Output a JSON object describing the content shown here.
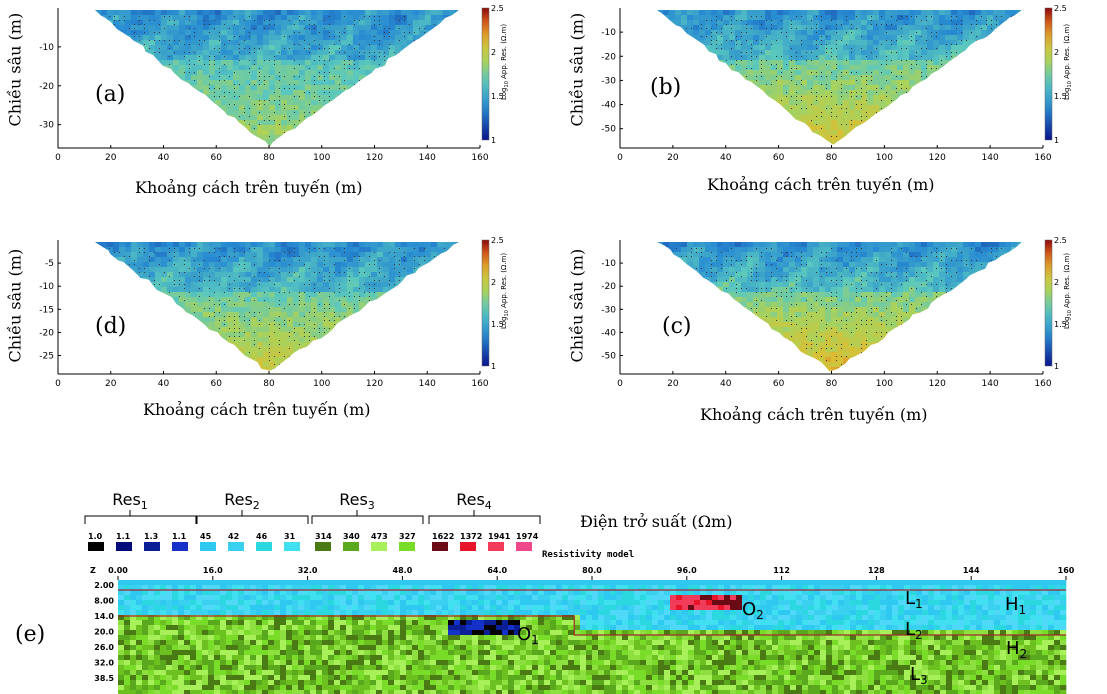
{
  "panels": [
    {
      "id": "a",
      "label": "(a)",
      "ylabel": "Chiều sâu (m)",
      "xlabel": "Khoảng cách trên tuyến (m)",
      "xticks": [
        "0",
        "20",
        "40",
        "60",
        "80",
        "100",
        "120",
        "140",
        "160"
      ],
      "yticks": [
        "-10",
        "-20",
        "-30"
      ],
      "ytick_values": [
        -10,
        -20,
        -30
      ],
      "ymin": -36,
      "colorbar_label": "Log10 App. Res. (Ω.m)",
      "colorbar_ticks": [
        "2.5",
        "2",
        "1.5",
        "1"
      ],
      "tone": 0.45
    },
    {
      "id": "b",
      "label": "(b)",
      "ylabel": "Chiều sâu (m)",
      "xlabel": "Khoảng cách trên tuyến (m)",
      "xticks": [
        "0",
        "20",
        "40",
        "60",
        "80",
        "100",
        "120",
        "140",
        "160"
      ],
      "yticks": [
        "-10",
        "-20",
        "-30",
        "-40",
        "-50"
      ],
      "ytick_values": [
        -10,
        -20,
        -30,
        -40,
        -50
      ],
      "ymin": -58,
      "colorbar_label": "Log10 App. Res. (Ω.m)",
      "colorbar_ticks": [
        "2.5",
        "2",
        "1.5",
        "1"
      ],
      "tone": 0.7
    },
    {
      "id": "d",
      "label": "(d)",
      "ylabel": "Chiều sâu (m)",
      "xlabel": "Khoảng cách trên tuyến (m)",
      "xticks": [
        "0",
        "20",
        "40",
        "60",
        "80",
        "100",
        "120",
        "140",
        "160"
      ],
      "yticks": [
        "-5",
        "-10",
        "-15",
        "-20",
        "-25"
      ],
      "ytick_values": [
        -5,
        -10,
        -15,
        -20,
        -25
      ],
      "ymin": -29,
      "colorbar_label": "Log10 App. Res. (Ω.m)",
      "colorbar_ticks": [
        "2.5",
        "2",
        "1.5",
        "1"
      ],
      "tone": 0.62
    },
    {
      "id": "c",
      "label": "(c)",
      "ylabel": "Chiều sâu (m)",
      "xlabel": "Khoảng cách trên tuyến (m)",
      "xticks": [
        "0",
        "20",
        "40",
        "60",
        "80",
        "100",
        "120",
        "140",
        "160"
      ],
      "yticks": [
        "-10",
        "-20",
        "-30",
        "-40",
        "-50"
      ],
      "ytick_values": [
        -10,
        -20,
        -30,
        -40,
        -50
      ],
      "ymin": -58,
      "colorbar_label": "Log10 App. Res. (Ω.m)",
      "colorbar_ticks": [
        "2.5",
        "2",
        "1.5",
        "1"
      ],
      "tone": 0.78
    }
  ],
  "panel_e": {
    "label": "(e)",
    "title": "Resistivity model",
    "legend_title": "Điện trở suất (Ωm)",
    "groups": [
      {
        "name": "Res",
        "sub": "1",
        "values": [
          "1.0",
          "1.1",
          "1.3",
          "1.1"
        ],
        "colors": [
          "#000000",
          "#000a78",
          "#0a1e96",
          "#1432c8"
        ]
      },
      {
        "name": "Res",
        "sub": "2",
        "values": [
          "45",
          "42",
          "46",
          "31"
        ],
        "colors": [
          "#2ec8f0",
          "#3ad0f0",
          "#2cd8e0",
          "#40e0f0"
        ]
      },
      {
        "name": "Res",
        "sub": "3",
        "values": [
          "314",
          "340",
          "473",
          "327"
        ],
        "colors": [
          "#4a7a14",
          "#5aa81e",
          "#a8f05a",
          "#78dc28"
        ]
      },
      {
        "name": "Res",
        "sub": "4",
        "values": [
          "1622",
          "1372",
          "1941",
          "1974"
        ],
        "colors": [
          "#6a0a14",
          "#e8142a",
          "#f03c5a",
          "#f0468c"
        ]
      }
    ],
    "xaxis_z": "Z",
    "xticks": [
      "0.00",
      "16.0",
      "32.0",
      "48.0",
      "64.0",
      "80.0",
      "96.0",
      "112",
      "128",
      "144",
      "160"
    ],
    "xtick_values": [
      0,
      16,
      32,
      48,
      64,
      80,
      96,
      112,
      128,
      144,
      160
    ],
    "yticks": [
      "2.00",
      "8.00",
      "14.0",
      "20.0",
      "26.0",
      "32.0",
      "38.5"
    ],
    "ytick_values": [
      2,
      8,
      14,
      20,
      26,
      32,
      38.5
    ],
    "labels": [
      {
        "text": "O",
        "sub": "1"
      },
      {
        "text": "O",
        "sub": "2"
      },
      {
        "text": "L",
        "sub": "1"
      },
      {
        "text": "L",
        "sub": "2"
      },
      {
        "text": "L",
        "sub": "3"
      },
      {
        "text": "H",
        "sub": "1"
      },
      {
        "text": "H",
        "sub": "2"
      }
    ]
  },
  "chart_data": [
    {
      "type": "heatmap",
      "title": "",
      "xlabel": "Khoảng cách trên tuyến (m)",
      "ylabel": "Chiều sâu (m)",
      "xlim": [
        0,
        160
      ],
      "ylim": [
        -36,
        0
      ],
      "panel": "(a)",
      "colorbar": "Log10 App. Res. (Ω.m)",
      "clim": [
        1,
        2.5
      ]
    },
    {
      "type": "heatmap",
      "title": "",
      "xlabel": "Khoảng cách trên tuyến (m)",
      "ylabel": "Chiều sâu (m)",
      "xlim": [
        0,
        160
      ],
      "ylim": [
        -58,
        0
      ],
      "panel": "(b)",
      "colorbar": "Log10 App. Res. (Ω.m)",
      "clim": [
        1,
        2.5
      ]
    },
    {
      "type": "heatmap",
      "title": "",
      "xlabel": "Khoảng cách trên tuyến (m)",
      "ylabel": "Chiều sâu (m)",
      "xlim": [
        0,
        160
      ],
      "ylim": [
        -29,
        0
      ],
      "panel": "(d)",
      "colorbar": "Log10 App. Res. (Ω.m)",
      "clim": [
        1,
        2.5
      ]
    },
    {
      "type": "heatmap",
      "title": "",
      "xlabel": "Khoảng cách trên tuyến (m)",
      "ylabel": "Chiều sâu (m)",
      "xlim": [
        0,
        160
      ],
      "ylim": [
        -58,
        0
      ],
      "panel": "(c)",
      "colorbar": "Log10 App. Res. (Ω.m)",
      "clim": [
        1,
        2.5
      ]
    },
    {
      "type": "heatmap",
      "title": "Resistivity model",
      "panel": "(e)",
      "xlim": [
        0,
        160
      ],
      "ylim": [
        0,
        38.5
      ],
      "layers": [
        {
          "name": "L1",
          "resistivity_group": "Res2",
          "depth_top": 0,
          "depth_bottom": 4
        },
        {
          "name": "L2",
          "resistivity_group": "Res2",
          "x_range": [
            0,
            160
          ],
          "depth_range": [
            4,
            14
          ]
        },
        {
          "name": "L3",
          "resistivity_group": "Res3",
          "depth_top": 14,
          "depth_bottom": 38.5
        },
        {
          "name": "O1",
          "resistivity_group": "Res1",
          "x_range": [
            55,
            67
          ],
          "depth_range": [
            16,
            20
          ]
        },
        {
          "name": "O2",
          "resistivity_group": "Res4",
          "x_range": [
            93,
            105
          ],
          "depth_range": [
            10,
            14
          ]
        }
      ]
    }
  ]
}
